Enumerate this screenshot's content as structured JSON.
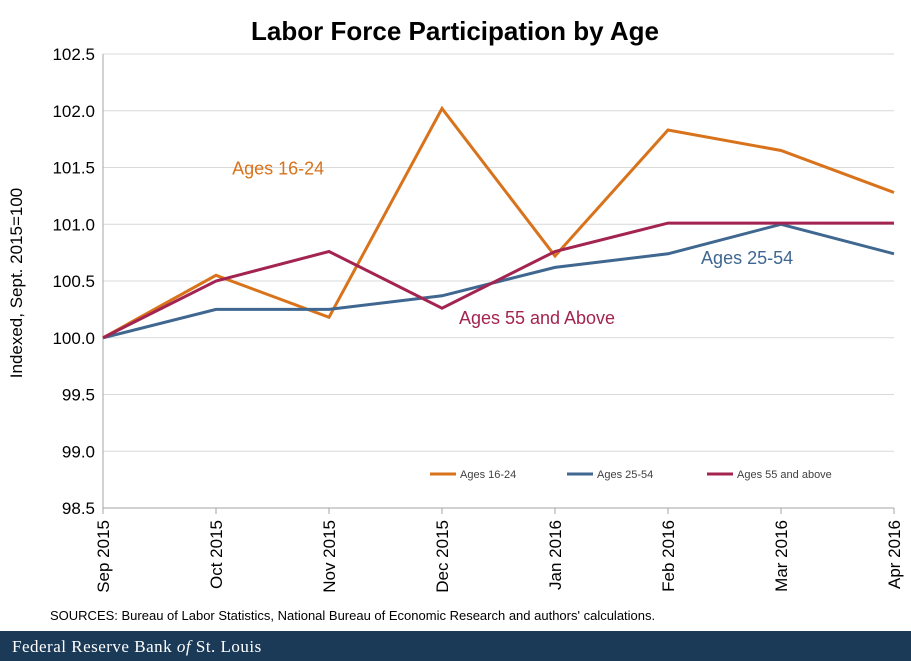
{
  "chart_data": {
    "type": "line",
    "title": "Labor Force Participation by Age",
    "ylabel": "Indexed,  Sept. 2015=100",
    "xlabel": "",
    "categories": [
      "Sep 2015",
      "Oct 2015",
      "Nov 2015",
      "Dec 2015",
      "Jan 2016",
      "Feb 2016",
      "Mar 2016",
      "Apr 2016"
    ],
    "ylim": [
      98.5,
      102.5
    ],
    "yticks": [
      "98.5",
      "99.0",
      "99.5",
      "100.0",
      "100.5",
      "101.0",
      "101.5",
      "102.0",
      "102.5"
    ],
    "grid": true,
    "legend_position": "lower-right",
    "series": [
      {
        "name": "Ages 16-24",
        "legend_label": "Ages 16-24",
        "annotation": "Ages 16-24",
        "color": "#d8731c",
        "values": [
          100.0,
          100.55,
          100.18,
          102.02,
          100.72,
          101.83,
          101.65,
          101.28
        ]
      },
      {
        "name": "Ages 25-54",
        "legend_label": "Ages 25-54",
        "annotation": "Ages 25-54",
        "color": "#3f6790",
        "values": [
          100.0,
          100.25,
          100.25,
          100.37,
          100.62,
          100.74,
          101.0,
          100.74
        ]
      },
      {
        "name": "Ages 55 and above",
        "legend_label": "Ages 55 and above",
        "annotation": "Ages 55 and Above",
        "color": "#a32451",
        "values": [
          100.0,
          100.5,
          100.76,
          100.26,
          100.76,
          101.01,
          101.01,
          101.01
        ]
      }
    ],
    "source": "SOURCES: Bureau of Labor Statistics, National Bureau of Economic Research and authors' calculations."
  },
  "footer": {
    "part1": "Federal Reserve Bank",
    "part2": "of",
    "part3": "St. Louis"
  }
}
